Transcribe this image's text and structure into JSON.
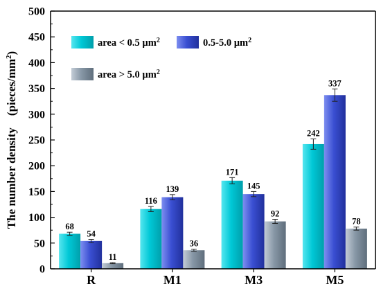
{
  "chart_data": {
    "type": "bar",
    "categories": [
      "R",
      "M1",
      "M3",
      "M5"
    ],
    "ylabel": "The number density　(pieces/mm",
    "ylabel_sup": "2",
    "ylabel_close": ")",
    "ylim": [
      0,
      500
    ],
    "yticks": [
      0,
      50,
      100,
      150,
      200,
      250,
      300,
      350,
      400,
      450,
      500
    ],
    "grid": false,
    "legend_placement": "top-left",
    "series": [
      {
        "name": "area < 0.5 µm",
        "name_sup": "2",
        "values": [
          68,
          116,
          171,
          242
        ],
        "errors": [
          3,
          5,
          6,
          10
        ],
        "colors": {
          "light": "#56e6ef",
          "mid": "#00c8d6",
          "dark": "#009fab"
        }
      },
      {
        "name": "0.5-5.0 µm",
        "name_sup": "2",
        "values": [
          54,
          139,
          145,
          337
        ],
        "errors": [
          3,
          5,
          5,
          12
        ],
        "colors": {
          "light": "#7d8ef0",
          "mid": "#3a4fd2",
          "dark": "#21309c"
        }
      },
      {
        "name": "area > 5.0 µm",
        "name_sup": "2",
        "values": [
          11,
          36,
          92,
          78
        ],
        "errors": [
          1,
          2,
          4,
          3
        ],
        "colors": {
          "light": "#c3ccd6",
          "mid": "#8797a6",
          "dark": "#5f6e7c"
        }
      }
    ]
  }
}
